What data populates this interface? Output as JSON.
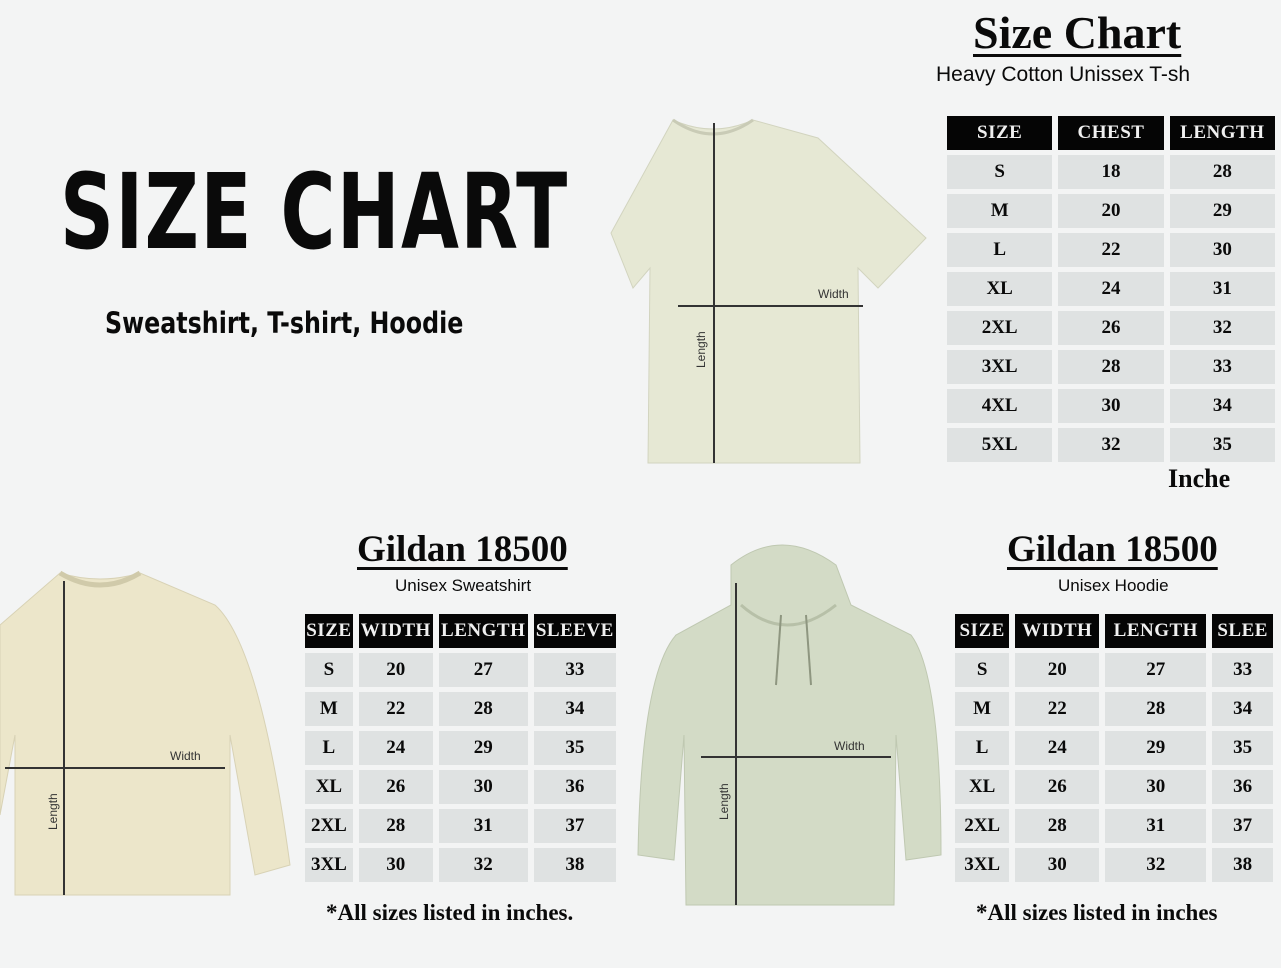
{
  "main": {
    "title": "SIZE CHART",
    "subtitle": "Sweatshirt, T-shirt, Hoodie"
  },
  "tshirt": {
    "title": "Size Chart",
    "subtitle": "Heavy Cotton Unissex T-sh",
    "headers": [
      "SIZE",
      "CHEST",
      "LENGTH"
    ],
    "rows": [
      [
        "S",
        "18",
        "28"
      ],
      [
        "M",
        "20",
        "29"
      ],
      [
        "L",
        "22",
        "30"
      ],
      [
        "XL",
        "24",
        "31"
      ],
      [
        "2XL",
        "26",
        "32"
      ],
      [
        "3XL",
        "28",
        "33"
      ],
      [
        "4XL",
        "30",
        "34"
      ],
      [
        "5XL",
        "32",
        "35"
      ]
    ],
    "unit": "Inche",
    "width_label": "Width",
    "length_label": "Length",
    "color": "#e6e8d4"
  },
  "sweatshirt": {
    "title": "Gildan 18500",
    "subtitle": "Unisex Sweatshirt",
    "headers": [
      "SIZE",
      "WIDTH",
      "LENGTH",
      "SLEEVE"
    ],
    "rows": [
      [
        "S",
        "20",
        "27",
        "33"
      ],
      [
        "M",
        "22",
        "28",
        "34"
      ],
      [
        "L",
        "24",
        "29",
        "35"
      ],
      [
        "XL",
        "26",
        "30",
        "36"
      ],
      [
        "2XL",
        "28",
        "31",
        "37"
      ],
      [
        "3XL",
        "30",
        "32",
        "38"
      ]
    ],
    "note": "*All sizes listed in inches.",
    "width_label": "Width",
    "length_label": "Length",
    "color": "#ece6ca"
  },
  "hoodie": {
    "title": "Gildan 18500",
    "subtitle": "Unisex Hoodie",
    "headers": [
      "SIZE",
      "WIDTH",
      "LENGTH",
      "SLEE"
    ],
    "rows": [
      [
        "S",
        "20",
        "27",
        "33"
      ],
      [
        "M",
        "22",
        "28",
        "34"
      ],
      [
        "L",
        "24",
        "29",
        "35"
      ],
      [
        "XL",
        "26",
        "30",
        "36"
      ],
      [
        "2XL",
        "28",
        "31",
        "37"
      ],
      [
        "3XL",
        "30",
        "32",
        "38"
      ]
    ],
    "note": "*All sizes listed in inches",
    "width_label": "Width",
    "length_label": "Length",
    "color": "#d3dbc6"
  }
}
